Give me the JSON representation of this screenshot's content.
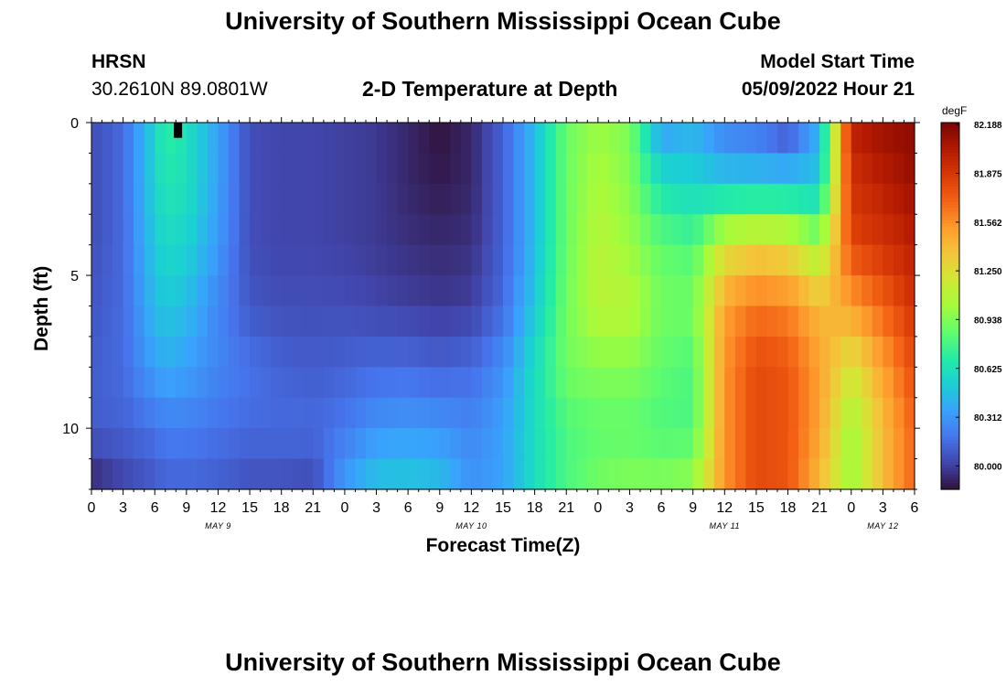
{
  "header": {
    "title": "University of Southern Mississippi Ocean Cube",
    "station": "HRSN",
    "coords": "30.2610N  89.0801W",
    "plot_title": "2-D Temperature at Depth",
    "model_start_label": "Model Start Time",
    "model_start_value": "05/09/2022 Hour 21"
  },
  "footer": {
    "title": "University of Southern Mississippi Ocean Cube"
  },
  "chart_data": {
    "type": "heatmap",
    "xlabel": "Forecast Time(Z)",
    "ylabel": "Depth (ft)",
    "x_range_hours": [
      0,
      78
    ],
    "y_range_ft": [
      0,
      12
    ],
    "y_ticks": [
      0,
      5,
      10
    ],
    "x_tick_labels": [
      "0",
      "3",
      "6",
      "9",
      "12",
      "15",
      "18",
      "21",
      "0",
      "3",
      "6",
      "9",
      "12",
      "15",
      "18",
      "21",
      "0",
      "3",
      "6",
      "9",
      "12",
      "15",
      "18",
      "21",
      "0",
      "3",
      "6"
    ],
    "date_labels": [
      {
        "text": "MAY 9",
        "hour": 12
      },
      {
        "text": "MAY 10",
        "hour": 36
      },
      {
        "text": "MAY 11",
        "hour": 60
      },
      {
        "text": "MAY 12",
        "hour": 75
      }
    ],
    "colorbar": {
      "unit": "degF",
      "min": 79.85,
      "max": 82.2,
      "labels": [
        "82.188",
        "81.875",
        "81.562",
        "81.250",
        "80.938",
        "80.625",
        "80.312",
        "80.000"
      ],
      "colormap": [
        "#30123b",
        "#4145ab",
        "#4675ed",
        "#39a2fc",
        "#1bcfd4",
        "#24eca6",
        "#61fc6c",
        "#a4fc3b",
        "#d1e834",
        "#f3c63a",
        "#fe9b2d",
        "#f36315",
        "#d93806",
        "#b11901",
        "#7a0402"
      ]
    },
    "temperature_anchors": {
      "columns_hours": [
        0,
        3,
        6,
        7,
        9,
        12,
        15,
        18,
        21,
        24,
        27,
        30,
        33,
        36,
        39,
        42,
        45,
        48,
        51,
        54,
        57,
        60,
        63,
        66,
        69,
        72,
        75,
        78
      ],
      "depths_ft": [
        0,
        2,
        4,
        6,
        8,
        10,
        12
      ],
      "rows": [
        [
          80.05,
          80.15,
          80.55,
          80.72,
          80.62,
          80.35,
          80.05,
          80.02,
          80.02,
          80.0,
          79.98,
          79.92,
          79.85,
          79.92,
          80.12,
          80.45,
          80.88,
          81.0,
          80.92,
          80.3,
          80.4,
          80.2,
          80.15,
          80.0,
          80.4,
          82.0,
          82.1,
          82.15
        ],
        [
          80.05,
          80.15,
          80.55,
          80.65,
          80.62,
          80.35,
          80.05,
          80.02,
          80.02,
          80.0,
          79.98,
          79.92,
          79.88,
          79.92,
          80.12,
          80.45,
          80.88,
          81.05,
          80.95,
          80.62,
          80.55,
          80.5,
          80.5,
          80.5,
          80.5,
          81.9,
          82.0,
          82.1
        ],
        [
          80.05,
          80.15,
          80.5,
          80.58,
          80.55,
          80.32,
          80.05,
          80.02,
          80.02,
          80.0,
          79.98,
          79.95,
          79.93,
          79.95,
          80.12,
          80.45,
          80.88,
          81.1,
          81.0,
          80.85,
          80.8,
          81.2,
          81.3,
          81.25,
          81.0,
          81.8,
          81.9,
          82.0
        ],
        [
          80.08,
          80.15,
          80.45,
          80.5,
          80.45,
          80.25,
          80.08,
          80.05,
          80.05,
          80.05,
          80.02,
          80.0,
          79.98,
          80.0,
          80.15,
          80.5,
          80.9,
          81.1,
          81.1,
          80.9,
          80.9,
          81.5,
          81.65,
          81.6,
          81.4,
          81.5,
          81.7,
          81.9
        ],
        [
          80.1,
          80.15,
          80.35,
          80.4,
          80.35,
          80.25,
          80.18,
          80.12,
          80.1,
          80.12,
          80.15,
          80.15,
          80.12,
          80.15,
          80.28,
          80.6,
          80.9,
          80.95,
          80.95,
          80.85,
          80.8,
          81.55,
          81.8,
          81.75,
          81.5,
          81.2,
          81.5,
          81.8
        ],
        [
          80.1,
          80.12,
          80.18,
          80.22,
          80.22,
          80.18,
          80.15,
          80.15,
          80.15,
          80.2,
          80.3,
          80.32,
          80.3,
          80.25,
          80.35,
          80.6,
          80.8,
          80.85,
          80.85,
          80.8,
          80.8,
          81.55,
          81.8,
          81.75,
          81.5,
          81.0,
          81.4,
          81.7
        ],
        [
          79.9,
          80.0,
          80.08,
          80.12,
          80.12,
          80.1,
          80.05,
          80.05,
          80.02,
          80.35,
          80.5,
          80.52,
          80.48,
          80.3,
          80.35,
          80.6,
          80.8,
          80.9,
          80.95,
          80.95,
          81.0,
          81.55,
          81.8,
          81.75,
          81.4,
          81.0,
          81.4,
          81.7
        ]
      ]
    },
    "dark_spot": {
      "hour": 8.2,
      "depth_ft_from": 0,
      "depth_ft_to": 0.5
    }
  }
}
